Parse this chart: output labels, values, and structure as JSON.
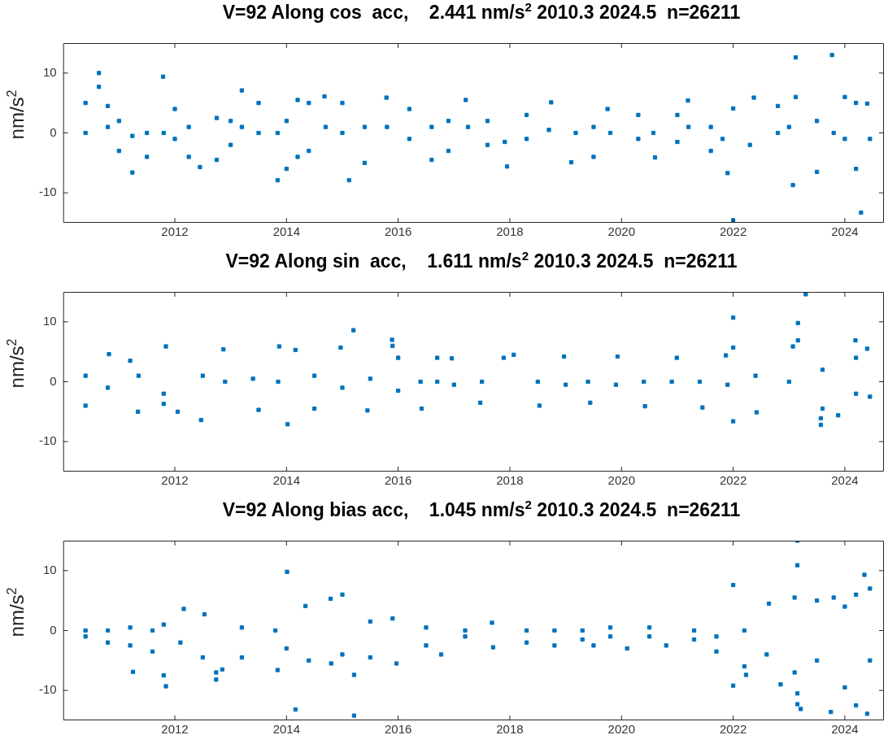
{
  "chart_data": [
    {
      "type": "scatter",
      "title": "V=92 Along cos  acc,    2.441 nm/s$^{2}$ 2010.3 2024.5  n=26211",
      "ylabel": "nm/s$^{2}$",
      "xlim": [
        2010,
        2024.7
      ],
      "ylim": [
        -15,
        15
      ],
      "xticks": [
        2012,
        2014,
        2016,
        2018,
        2020,
        2022,
        2024
      ],
      "yticks": [
        -10,
        0,
        10
      ],
      "grid": false,
      "legend": false,
      "marker": "square",
      "series": [
        {
          "color": "#0072bd",
          "x": [
            2010.4,
            2010.4,
            2010.64,
            2010.64,
            2010.8,
            2010.8,
            2011.0,
            2011.0,
            2011.24,
            2011.24,
            2011.5,
            2011.5,
            2011.79,
            2011.8,
            2012.0,
            2012.0,
            2012.25,
            2012.25,
            2012.45,
            2012.75,
            2012.75,
            2013.0,
            2013.0,
            2013.2,
            2013.2,
            2013.5,
            2013.5,
            2013.84,
            2013.84,
            2014.0,
            2014.0,
            2014.2,
            2014.2,
            2014.4,
            2014.4,
            2014.68,
            2014.7,
            2015.0,
            2015.0,
            2015.12,
            2015.4,
            2015.4,
            2015.79,
            2015.8,
            2016.2,
            2016.2,
            2016.6,
            2016.6,
            2016.9,
            2016.9,
            2017.21,
            2017.25,
            2017.6,
            2017.6,
            2017.91,
            2017.95,
            2018.3,
            2018.3,
            2018.74,
            2018.7,
            2019.18,
            2019.1,
            2019.5,
            2019.5,
            2019.75,
            2019.8,
            2020.3,
            2020.3,
            2020.57,
            2020.6,
            2021.0,
            2021.0,
            2021.19,
            2021.2,
            2021.6,
            2021.6,
            2021.81,
            2021.9,
            2022.0,
            2022.0,
            2022.37,
            2022.3,
            2022.8,
            2022.8,
            2023.0,
            2023.07,
            2023.12,
            2023.12,
            2023.5,
            2023.5,
            2023.77,
            2023.8,
            2024.0,
            2024.0,
            2024.2,
            2024.2,
            2024.29,
            2024.4,
            2024.45
          ],
          "values": [
            5,
            0,
            10,
            7.7,
            4.5,
            1,
            2,
            -3,
            -0.5,
            -6.6,
            0,
            -4,
            9.4,
            0,
            4,
            -1,
            1,
            -4,
            -5.7,
            2.5,
            -4.5,
            2,
            -2,
            7.1,
            1,
            5,
            0,
            0,
            -7.9,
            2,
            -6,
            5.5,
            -4,
            5,
            -3,
            6.1,
            1,
            5,
            0,
            -7.9,
            1,
            -5,
            5.9,
            1,
            4,
            -1,
            1,
            -4.5,
            2,
            -3,
            5.5,
            1,
            2,
            -2,
            -1.5,
            -5.6,
            3,
            -1,
            5.1,
            0.5,
            0,
            -4.9,
            1,
            -4,
            4,
            0,
            3,
            -1,
            0,
            -4.1,
            3,
            -1.5,
            5.4,
            1,
            1,
            -3,
            -1,
            -6.7,
            4.1,
            -14.6,
            5.9,
            -2,
            4.5,
            0,
            1,
            -8.7,
            12.6,
            6,
            2,
            -6.5,
            13,
            0,
            6,
            -1,
            5,
            -6,
            -13.3,
            4.9,
            -1
          ]
        }
      ]
    },
    {
      "type": "scatter",
      "title": "V=92 Along sin  acc,    1.611 nm/s$^{2}$ 2010.3 2024.5  n=26211",
      "ylabel": "nm/s$^{2}$",
      "xlim": [
        2010,
        2024.7
      ],
      "ylim": [
        -15,
        15
      ],
      "xticks": [
        2012,
        2014,
        2016,
        2018,
        2020,
        2022,
        2024
      ],
      "yticks": [
        -10,
        0,
        10
      ],
      "grid": false,
      "legend": false,
      "marker": "square",
      "series": [
        {
          "color": "#0072bd",
          "x": [
            2010.4,
            2010.4,
            2010.82,
            2010.8,
            2011.2,
            2011.34,
            2011.35,
            2011.84,
            2011.8,
            2011.8,
            2012.05,
            2012.5,
            2012.47,
            2012.87,
            2012.9,
            2013.4,
            2013.5,
            2013.87,
            2013.85,
            2014.02,
            2014.16,
            2014.5,
            2014.5,
            2014.97,
            2015.0,
            2015.2,
            2015.5,
            2015.45,
            2015.89,
            2015.9,
            2016.0,
            2016.0,
            2016.4,
            2016.42,
            2016.7,
            2016.7,
            2016.96,
            2017.0,
            2017.5,
            2017.47,
            2017.89,
            2018.07,
            2018.5,
            2018.53,
            2018.97,
            2019.0,
            2019.4,
            2019.44,
            2019.93,
            2019.9,
            2020.4,
            2020.42,
            2020.99,
            2020.9,
            2021.4,
            2021.45,
            2021.87,
            2021.9,
            2022.0,
            2022.0,
            2022.0,
            2022.4,
            2022.42,
            2023.07,
            2023.0,
            2023.16,
            2023.16,
            2023.3,
            2023.6,
            2023.6,
            2023.57,
            2023.57,
            2023.88,
            2024.2,
            2024.2,
            2024.19,
            2024.4,
            2024.45
          ],
          "values": [
            1,
            -4,
            4.6,
            -1,
            3.5,
            -5,
            1,
            5.9,
            -2,
            -3.7,
            -5,
            1,
            -6.4,
            5.4,
            0,
            0.5,
            -4.7,
            5.9,
            0,
            -7.1,
            5.3,
            1,
            -4.5,
            5.7,
            -1,
            8.6,
            0.5,
            -4.8,
            7,
            6,
            4,
            -1.5,
            0,
            -4.5,
            4,
            0,
            3.9,
            -0.5,
            0,
            -3.5,
            4,
            4.5,
            0,
            -4,
            4.2,
            -0.5,
            0,
            -3.5,
            4.2,
            -0.5,
            0,
            -4.1,
            4,
            0,
            0,
            -4.3,
            4.4,
            -0.5,
            10.7,
            5.7,
            -6.6,
            1,
            -5.1,
            5.9,
            0,
            9.8,
            6.9,
            14.6,
            2,
            -4.5,
            -6.1,
            -7.2,
            -5.6,
            4,
            -2,
            6.9,
            5.5,
            -2.5
          ]
        }
      ]
    },
    {
      "type": "scatter",
      "title": "V=92 Along bias acc,    1.045 nm/s$^{2}$ 2010.3 2024.5  n=26211",
      "ylabel": "nm/s$^{2}$",
      "xlim": [
        2010,
        2024.7
      ],
      "ylim": [
        -15,
        15
      ],
      "xticks": [
        2012,
        2014,
        2016,
        2018,
        2020,
        2022,
        2024
      ],
      "yticks": [
        -10,
        0,
        10
      ],
      "grid": false,
      "legend": false,
      "marker": "square",
      "series": [
        {
          "color": "#0072bd",
          "x": [
            2010.4,
            2010.4,
            2010.8,
            2010.8,
            2011.2,
            2011.2,
            2011.25,
            2011.6,
            2011.6,
            2011.8,
            2011.8,
            2011.84,
            2012.16,
            2012.1,
            2012.53,
            2012.5,
            2012.74,
            2012.74,
            2012.85,
            2013.2,
            2013.2,
            2013.8,
            2013.84,
            2014.01,
            2014.0,
            2014.16,
            2014.34,
            2014.4,
            2014.79,
            2014.8,
            2015.0,
            2015.0,
            2015.21,
            2015.21,
            2015.5,
            2015.5,
            2015.9,
            2015.97,
            2016.5,
            2016.5,
            2016.77,
            2017.2,
            2017.2,
            2017.68,
            2017.7,
            2018.3,
            2018.3,
            2018.8,
            2018.8,
            2019.3,
            2019.3,
            2019.5,
            2019.8,
            2019.8,
            2020.1,
            2020.5,
            2020.5,
            2020.8,
            2021.3,
            2021.3,
            2021.7,
            2021.7,
            2022.0,
            2022.0,
            2022.2,
            2022.2,
            2022.23,
            2022.64,
            2022.6,
            2022.85,
            2023.1,
            2023.1,
            2023.15,
            2023.15,
            2023.15,
            2023.15,
            2023.21,
            2023.5,
            2023.5,
            2023.8,
            2023.75,
            2024.0,
            2024.0,
            2024.2,
            2024.2,
            2024.35,
            2024.4,
            2024.45,
            2024.45
          ],
          "values": [
            0,
            -1,
            0,
            -2,
            0.5,
            -2.5,
            -6.9,
            0,
            -3.5,
            1,
            -7.5,
            -9.3,
            3.6,
            -2,
            2.7,
            -4.5,
            -7,
            -8.2,
            -6.5,
            0.5,
            -4.5,
            0,
            -6.6,
            9.8,
            -3,
            -13.2,
            4.1,
            -5,
            5.3,
            -5.5,
            6,
            -4,
            -7.4,
            -14.2,
            1.5,
            -4.5,
            2,
            -5.5,
            0.5,
            -2.5,
            -4,
            0,
            -1,
            1.3,
            -2.8,
            0,
            -2,
            0,
            -2.5,
            0,
            -1.5,
            -2.5,
            0.5,
            -1,
            -3,
            0.5,
            -1,
            -2.5,
            0,
            -1.5,
            -1,
            -3.5,
            7.6,
            -9.2,
            0,
            -6,
            -7.4,
            4.5,
            -4,
            -9,
            5.5,
            -7,
            15,
            10.9,
            -12.3,
            -10.5,
            -13.1,
            5,
            -5,
            5.5,
            -13.6,
            4,
            -9.5,
            6,
            -12.5,
            9.3,
            -13.9,
            7,
            -5
          ]
        }
      ]
    }
  ]
}
